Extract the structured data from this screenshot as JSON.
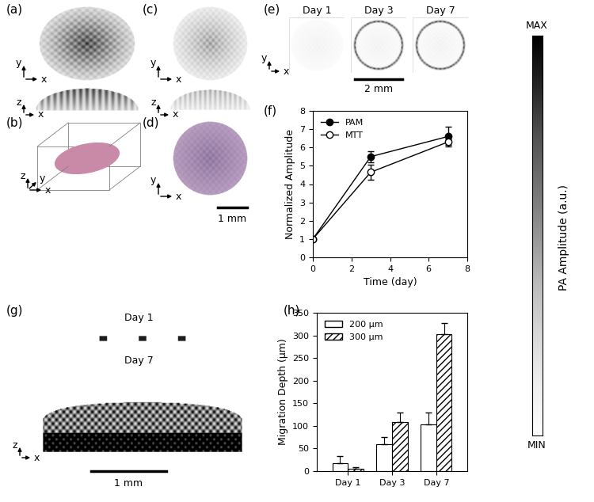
{
  "chart_data": [
    {
      "type": "line",
      "annotations": [
        "(f)"
      ],
      "x_label": "Time (day)",
      "y_label": "Normalized Amplitude",
      "x": [
        0,
        3,
        7
      ],
      "series": [
        {
          "name": "PAM",
          "color": "#000000",
          "marker": "filled_circle",
          "values": [
            1,
            5.5,
            6.6
          ],
          "errors": [
            0,
            0.3,
            0.55
          ]
        },
        {
          "name": "MTT",
          "color": "#000000",
          "marker": "open_circle",
          "values": [
            1,
            4.65,
            6.3
          ],
          "errors": [
            0,
            0.4,
            0.15
          ]
        }
      ],
      "xlim": [
        0,
        8
      ],
      "xticks": [
        0,
        2,
        4,
        6,
        8
      ],
      "ylim": [
        0,
        8
      ],
      "yticks": [
        0,
        1,
        2,
        3,
        4,
        5,
        6,
        7,
        8
      ],
      "legend": "upper left"
    },
    {
      "type": "bar",
      "annotations": [
        "(h)"
      ],
      "y_label": "Migration Depth (μm)",
      "categories": [
        "Day 1",
        "Day 3",
        "Day 7"
      ],
      "series": [
        {
          "name": "200 μm",
          "color": "#ffffff",
          "values": [
            18,
            60,
            103
          ],
          "errors": [
            15,
            15,
            27
          ]
        },
        {
          "name": "300 μm",
          "color": "#ffffff",
          "values": [
            5,
            108,
            302
          ],
          "errors": [
            3,
            22,
            25
          ]
        }
      ],
      "ylim": [
        0,
        350
      ],
      "yticks": [
        0,
        50,
        100,
        150,
        200,
        250,
        300,
        350
      ],
      "legend": "upper left"
    }
  ],
  "images": {
    "a": {
      "label": "(a)"
    },
    "b": {
      "label": "(b)"
    },
    "c": {
      "label": "(c)"
    },
    "d": {
      "label": "(d)",
      "scale_bar": "1 mm"
    },
    "e": {
      "label": "(e)",
      "titles": [
        "Day 1",
        "Day 3",
        "Day 7"
      ],
      "scale_bar": "2 mm"
    },
    "g": {
      "label": "(g)",
      "titles": [
        "Day 1",
        "Day 7"
      ],
      "scale_bar": "1 mm"
    }
  },
  "axis_names": [
    "x",
    "y",
    "z"
  ],
  "colorbar": {
    "label": "PA Amplitude (a.u.)",
    "max": "MAX",
    "min": "MIN"
  }
}
